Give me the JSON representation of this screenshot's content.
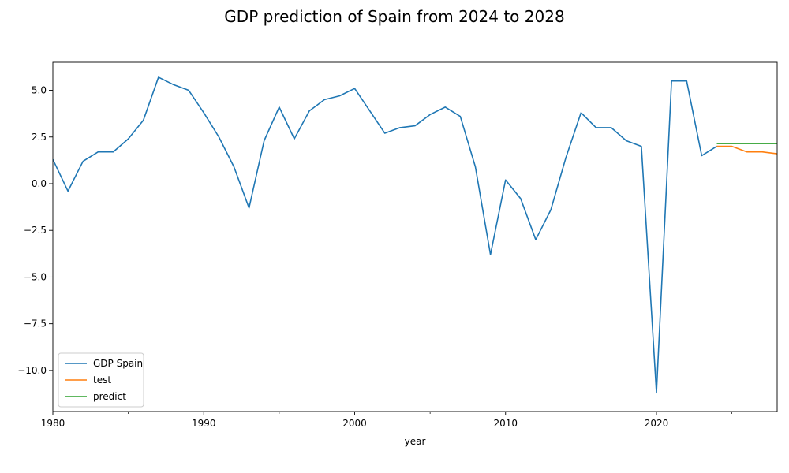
{
  "chart_data": {
    "type": "line",
    "title": "GDP prediction of Spain from 2024 to 2028",
    "xlabel": "year",
    "ylabel": "",
    "xlim": [
      1980,
      2028
    ],
    "ylim": [
      -12.2,
      6.5
    ],
    "x_ticks": [
      1980,
      1990,
      2000,
      2010,
      2020
    ],
    "x_tick_labels": [
      "1980",
      "1990",
      "2000",
      "2010",
      "2020"
    ],
    "x_minor_ticks": [
      1985,
      1995,
      2005,
      2015,
      2025
    ],
    "y_ticks": [
      5.0,
      2.5,
      0.0,
      -2.5,
      -5.0,
      -7.5,
      -10.0
    ],
    "y_tick_labels": [
      "5.0",
      "2.5",
      "0.0",
      "−2.5",
      "−5.0",
      "−7.5",
      "−10.0"
    ],
    "grid": false,
    "legend_position": "lower-left",
    "series": [
      {
        "name": "GDP Spain",
        "color": "#1f77b4",
        "x": [
          1980,
          1981,
          1982,
          1983,
          1984,
          1985,
          1986,
          1987,
          1988,
          1989,
          1990,
          1991,
          1992,
          1993,
          1994,
          1995,
          1996,
          1997,
          1998,
          1999,
          2000,
          2001,
          2002,
          2003,
          2004,
          2005,
          2006,
          2007,
          2008,
          2009,
          2010,
          2011,
          2012,
          2013,
          2014,
          2015,
          2016,
          2017,
          2018,
          2019,
          2020,
          2021,
          2022,
          2023,
          2024
        ],
        "values": [
          1.3,
          -0.4,
          1.2,
          1.7,
          1.7,
          2.4,
          3.4,
          5.7,
          5.3,
          5.0,
          3.8,
          2.5,
          0.9,
          -1.3,
          2.3,
          4.1,
          2.4,
          3.9,
          4.5,
          4.7,
          5.1,
          3.9,
          2.7,
          3.0,
          3.1,
          3.7,
          4.1,
          3.6,
          0.9,
          -3.8,
          0.2,
          -0.8,
          -3.0,
          -1.4,
          1.4,
          3.8,
          3.0,
          3.0,
          2.3,
          2.0,
          -11.2,
          5.5,
          5.5,
          1.5,
          2.0
        ]
      },
      {
        "name": "test",
        "color": "#ff7f0e",
        "x": [
          2024,
          2025,
          2026,
          2027,
          2028
        ],
        "values": [
          2.0,
          2.0,
          1.7,
          1.7,
          1.6
        ]
      },
      {
        "name": "predict",
        "color": "#2ca02c",
        "x": [
          2024,
          2025,
          2026,
          2027,
          2028
        ],
        "values": [
          2.15,
          2.15,
          2.15,
          2.15,
          2.15
        ]
      }
    ]
  }
}
